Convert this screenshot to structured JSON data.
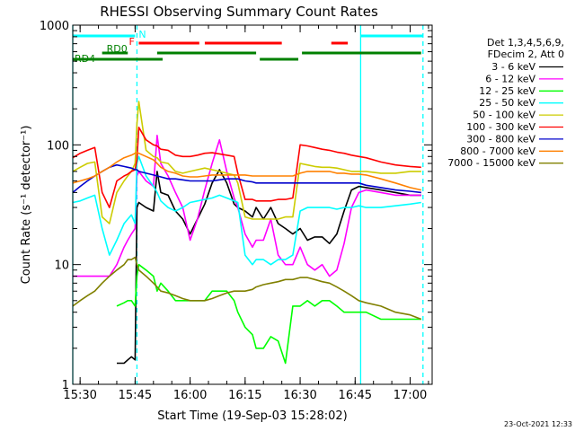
{
  "chart_data": {
    "type": "line",
    "title": "RHESSI Observing Summary Count Rates",
    "xlabel": "Start Time (19-Sep-03 15:28:02)",
    "ylabel": "Count Rate (s⁻¹ detector⁻¹)",
    "footer": "23-Oct-2021 12:33",
    "x_unit": "minutes from 15:28:02",
    "xlim": [
      0,
      98
    ],
    "ylim": [
      1,
      1000
    ],
    "y_scale": "log",
    "x_ticks": [
      {
        "label": "15:30",
        "value": 2
      },
      {
        "label": "15:45",
        "value": 17
      },
      {
        "label": "16:00",
        "value": 32
      },
      {
        "label": "16:15",
        "value": 47
      },
      {
        "label": "16:30",
        "value": 62
      },
      {
        "label": "16:45",
        "value": 77
      },
      {
        "label": "17:00",
        "value": 92
      }
    ],
    "y_ticks": [
      {
        "label": "1",
        "value": 1
      },
      {
        "label": "10",
        "value": 10
      },
      {
        "label": "100",
        "value": 100
      },
      {
        "label": "1000",
        "value": 1000
      }
    ],
    "legend": {
      "placement": "right",
      "header": [
        "Det 1,3,4,5,6,9,",
        "FDecim 2, Att 0"
      ]
    },
    "series": [
      {
        "name": "3 - 6 keV",
        "color": "#000000",
        "x": [
          12,
          14,
          15,
          16,
          17,
          17.5,
          18,
          20,
          22,
          23,
          24,
          26,
          28,
          30,
          32,
          34,
          36,
          38,
          40,
          42,
          44,
          45,
          47,
          49,
          50,
          52,
          54,
          56,
          58,
          60,
          62,
          64,
          66,
          68,
          70,
          72,
          74,
          76,
          78,
          80,
          84,
          88,
          92,
          95
        ],
        "y": [
          1.5,
          1.5,
          1.6,
          1.7,
          1.6,
          30,
          33,
          30,
          28,
          60,
          40,
          38,
          28,
          24,
          18,
          24,
          32,
          48,
          62,
          48,
          32,
          30,
          28,
          25,
          30,
          24,
          30,
          22,
          20,
          18,
          20,
          16,
          17,
          17,
          15,
          18,
          28,
          42,
          45,
          44,
          42,
          40,
          38,
          38
        ]
      },
      {
        "name": "6 - 12 keV",
        "color": "#ff00ff",
        "x": [
          0,
          2,
          4,
          6,
          8,
          10,
          12,
          14,
          15,
          16,
          17,
          17.5,
          18,
          20,
          22,
          23,
          24,
          26,
          28,
          30,
          32,
          34,
          36,
          38,
          40,
          42,
          44,
          45,
          47,
          49,
          50,
          52,
          54,
          56,
          58,
          60,
          62,
          64,
          66,
          68,
          70,
          72,
          74,
          76,
          78,
          80,
          84,
          88,
          92,
          95
        ],
        "y": [
          8,
          8,
          8,
          8,
          8,
          8,
          10,
          14,
          16,
          18,
          20,
          55,
          60,
          50,
          45,
          120,
          70,
          55,
          40,
          30,
          16,
          24,
          42,
          70,
          110,
          60,
          36,
          30,
          18,
          14,
          16,
          16,
          24,
          12,
          10,
          10,
          14,
          10,
          9,
          10,
          8,
          9,
          15,
          30,
          40,
          42,
          40,
          38,
          38,
          38
        ]
      },
      {
        "name": "12 - 25 keV",
        "color": "#00ff00",
        "x": [
          12,
          14,
          15,
          16,
          17,
          17.5,
          18,
          20,
          22,
          23,
          24,
          26,
          28,
          30,
          32,
          34,
          36,
          38,
          40,
          42,
          44,
          45,
          47,
          49,
          50,
          52,
          54,
          56,
          58,
          60,
          62,
          64,
          66,
          68,
          70,
          72,
          74,
          76,
          78,
          80,
          84,
          88,
          92,
          95
        ],
        "y": [
          4.5,
          4.8,
          5,
          5,
          4.5,
          8,
          10,
          9,
          8,
          6,
          7,
          6,
          5,
          5,
          5,
          5,
          5,
          6,
          6,
          6,
          5,
          4,
          3,
          2.6,
          2,
          2,
          2.5,
          2.3,
          1.5,
          4.5,
          4.5,
          5,
          4.5,
          5,
          5,
          4.5,
          4,
          4,
          4,
          4,
          3.5,
          3.5,
          3.5,
          3.5
        ]
      },
      {
        "name": "25 - 50 keV",
        "color": "#00ffff",
        "x": [
          0,
          2,
          4,
          6,
          8,
          10,
          12,
          14,
          15,
          16,
          17,
          17.5,
          18,
          20,
          22,
          23,
          24,
          26,
          28,
          30,
          32,
          34,
          36,
          38,
          40,
          42,
          44,
          45,
          47,
          49,
          50,
          52,
          54,
          56,
          58,
          60,
          62,
          64,
          66,
          68,
          70,
          72,
          74,
          76,
          78,
          80,
          84,
          88,
          92,
          95
        ],
        "y": [
          33,
          34,
          36,
          38,
          20,
          12,
          16,
          22,
          24,
          26,
          22,
          70,
          80,
          55,
          45,
          40,
          34,
          30,
          28,
          30,
          33,
          34,
          35,
          36,
          38,
          36,
          34,
          33,
          12,
          10,
          11,
          11,
          10,
          11,
          11,
          12,
          28,
          30,
          30,
          30,
          30,
          29,
          30,
          30,
          31,
          30,
          30,
          31,
          32,
          33
        ]
      },
      {
        "name": "50 - 100 keV",
        "color": "#cccc00",
        "x": [
          0,
          2,
          4,
          6,
          8,
          10,
          12,
          14,
          15,
          16,
          17,
          17.5,
          18,
          20,
          22,
          23,
          24,
          26,
          28,
          30,
          32,
          34,
          36,
          38,
          40,
          42,
          44,
          45,
          47,
          49,
          50,
          52,
          54,
          56,
          58,
          60,
          62,
          64,
          66,
          68,
          70,
          72,
          74,
          76,
          78,
          80,
          84,
          88,
          92,
          95
        ],
        "y": [
          60,
          65,
          70,
          72,
          25,
          22,
          40,
          50,
          55,
          60,
          70,
          150,
          230,
          90,
          80,
          78,
          72,
          70,
          60,
          58,
          60,
          62,
          64,
          62,
          60,
          58,
          56,
          48,
          25,
          24,
          24,
          24,
          24,
          24,
          25,
          25,
          70,
          68,
          66,
          65,
          65,
          64,
          62,
          60,
          60,
          60,
          58,
          58,
          60,
          60
        ]
      },
      {
        "name": "100 - 300 keV",
        "color": "#ff0000",
        "x": [
          0,
          2,
          4,
          6,
          8,
          10,
          12,
          14,
          15,
          16,
          17,
          17.5,
          18,
          20,
          22,
          23,
          24,
          26,
          28,
          30,
          32,
          34,
          36,
          38,
          40,
          42,
          44,
          45,
          47,
          49,
          50,
          52,
          54,
          56,
          58,
          60,
          62,
          64,
          66,
          68,
          70,
          72,
          74,
          76,
          78,
          80,
          84,
          88,
          92,
          95
        ],
        "y": [
          78,
          85,
          90,
          95,
          40,
          30,
          50,
          55,
          57,
          60,
          62,
          75,
          140,
          110,
          100,
          98,
          92,
          90,
          82,
          80,
          80,
          82,
          85,
          86,
          84,
          82,
          80,
          58,
          35,
          35,
          34,
          34,
          34,
          35,
          35,
          36,
          100,
          98,
          95,
          92,
          90,
          87,
          85,
          82,
          80,
          78,
          72,
          68,
          66,
          65
        ]
      },
      {
        "name": "300 - 800 keV",
        "color": "#0000cc",
        "x": [
          0,
          2,
          4,
          6,
          8,
          10,
          12,
          14,
          15,
          16,
          17,
          17.5,
          18,
          20,
          22,
          23,
          24,
          26,
          28,
          30,
          32,
          34,
          36,
          38,
          40,
          42,
          44,
          45,
          47,
          49,
          50,
          52,
          54,
          56,
          58,
          60,
          62,
          64,
          66,
          68,
          70,
          72,
          74,
          76,
          78,
          80,
          84,
          88,
          92,
          95
        ],
        "y": [
          40,
          45,
          50,
          55,
          60,
          65,
          68,
          66,
          65,
          64,
          62,
          62,
          60,
          58,
          56,
          55,
          54,
          52,
          52,
          51,
          50,
          50,
          50,
          50,
          51,
          52,
          52,
          52,
          50,
          49,
          48,
          48,
          48,
          48,
          48,
          48,
          48,
          48,
          48,
          48,
          48,
          48,
          48,
          48,
          48,
          46,
          44,
          42,
          41,
          40
        ]
      },
      {
        "name": "800 - 7000 keV",
        "color": "#ff8000",
        "x": [
          0,
          2,
          4,
          6,
          8,
          10,
          12,
          14,
          15,
          16,
          17,
          17.5,
          18,
          20,
          22,
          23,
          24,
          26,
          28,
          30,
          32,
          34,
          36,
          38,
          40,
          42,
          44,
          45,
          47,
          49,
          50,
          52,
          54,
          56,
          58,
          60,
          62,
          64,
          66,
          68,
          70,
          72,
          74,
          76,
          78,
          80,
          84,
          88,
          92,
          95
        ],
        "y": [
          48,
          50,
          52,
          55,
          60,
          65,
          72,
          78,
          80,
          82,
          85,
          86,
          85,
          80,
          75,
          70,
          65,
          60,
          58,
          55,
          54,
          54,
          55,
          56,
          56,
          56,
          56,
          56,
          56,
          55,
          55,
          55,
          55,
          55,
          55,
          55,
          58,
          60,
          60,
          60,
          60,
          58,
          58,
          57,
          57,
          56,
          52,
          48,
          44,
          42
        ]
      },
      {
        "name": "7000 - 15000 keV",
        "color": "#808000",
        "x": [
          0,
          2,
          4,
          6,
          8,
          10,
          12,
          14,
          15,
          16,
          17,
          17.5,
          18,
          20,
          22,
          23,
          24,
          26,
          28,
          30,
          32,
          34,
          36,
          38,
          40,
          42,
          44,
          45,
          47,
          49,
          50,
          52,
          54,
          56,
          58,
          60,
          62,
          64,
          66,
          68,
          70,
          72,
          74,
          76,
          78,
          80,
          84,
          88,
          92,
          95
        ],
        "y": [
          4.5,
          5,
          5.5,
          6,
          7,
          8,
          9,
          10,
          11,
          11,
          11.5,
          10,
          9,
          8,
          7,
          6.5,
          6,
          5.8,
          5.5,
          5.2,
          5,
          5,
          5,
          5.2,
          5.5,
          5.8,
          6,
          6,
          6,
          6.2,
          6.5,
          6.8,
          7,
          7.2,
          7.5,
          7.5,
          7.8,
          7.8,
          7.5,
          7.2,
          7,
          6.5,
          6,
          5.5,
          5,
          4.8,
          4.5,
          4,
          3.8,
          3.5
        ]
      }
    ],
    "state_bars": [
      {
        "label": "N",
        "color": "#00ffff",
        "segments": [
          [
            0,
            17
          ],
          [
            78.5,
            95.5
          ]
        ]
      },
      {
        "label": "F",
        "color": "#ff0000",
        "segments": [
          [
            18,
            34.5
          ],
          [
            36,
            57
          ],
          [
            70.5,
            75
          ]
        ]
      },
      {
        "label": "RD0",
        "color": "#008000",
        "segments": [
          [
            8,
            15
          ],
          [
            23,
            50
          ],
          [
            62.5,
            95
          ]
        ]
      },
      {
        "label": "RD4",
        "color": "#008000",
        "segments": [
          [
            0,
            24.5
          ],
          [
            51,
            61.5
          ]
        ]
      }
    ],
    "vertical_lines": [
      {
        "x": 0,
        "color": "#00ffff",
        "style": "solid"
      },
      {
        "x": 17.5,
        "color": "#00ffff",
        "style": "dashed"
      },
      {
        "x": 78.5,
        "color": "#00ffff",
        "style": "solid"
      },
      {
        "x": 95.5,
        "color": "#00ffff",
        "style": "dashed"
      }
    ]
  }
}
